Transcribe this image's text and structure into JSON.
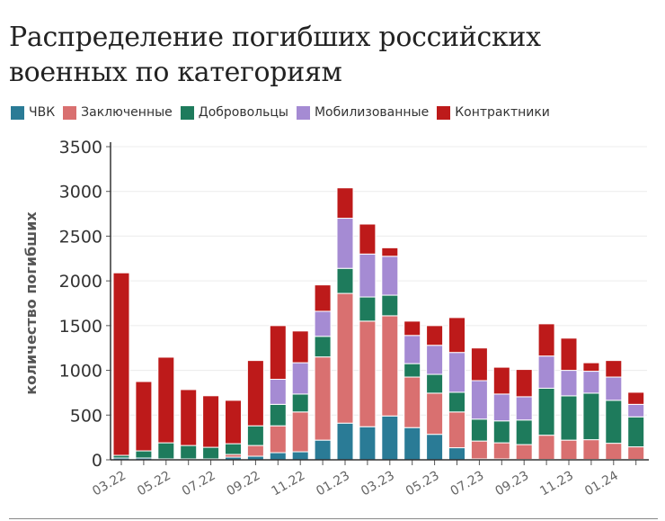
{
  "chart_data": {
    "type": "bar",
    "stacked": true,
    "title": "Распределение погибших российских военных по категориям",
    "xlabel": "",
    "ylabel": "количество погибших",
    "ylim": [
      0,
      3500
    ],
    "y_ticks": [
      0,
      500,
      1000,
      1500,
      2000,
      2500,
      3000,
      3500
    ],
    "grid": true,
    "legend_position": "top-left",
    "categories": [
      "03.22",
      "04.22",
      "05.22",
      "06.22",
      "07.22",
      "08.22",
      "09.22",
      "10.22",
      "11.22",
      "12.22",
      "01.23",
      "02.23",
      "03.23",
      "04.23",
      "05.23",
      "06.23",
      "07.23",
      "08.23",
      "09.23",
      "10.23",
      "11.23",
      "12.23",
      "01.24",
      "02.24"
    ],
    "x_tick_labels": [
      "03.22",
      "05.22",
      "07.22",
      "09.22",
      "11.22",
      "01.23",
      "03.23",
      "05.23",
      "07.23",
      "09.23",
      "11.23",
      "01.24"
    ],
    "series": [
      {
        "name": "ЧВК",
        "color": "#2a7b96",
        "values": [
          20,
          20,
          10,
          10,
          10,
          30,
          40,
          80,
          90,
          220,
          410,
          370,
          490,
          360,
          285,
          135,
          10,
          10,
          5,
          5,
          5,
          5,
          5,
          5
        ]
      },
      {
        "name": "Заключенные",
        "color": "#d97070",
        "values": [
          0,
          0,
          0,
          0,
          0,
          30,
          120,
          300,
          445,
          930,
          1450,
          1180,
          1120,
          565,
          460,
          400,
          200,
          180,
          165,
          270,
          215,
          220,
          180,
          140
        ]
      },
      {
        "name": "Добровольцы",
        "color": "#1e7b5c",
        "values": [
          30,
          80,
          180,
          150,
          130,
          120,
          220,
          240,
          200,
          230,
          280,
          270,
          230,
          150,
          210,
          220,
          245,
          245,
          275,
          525,
          495,
          520,
          480,
          335
        ]
      },
      {
        "name": "Мобилизованные",
        "color": "#a58bd3",
        "values": [
          0,
          0,
          0,
          0,
          0,
          0,
          0,
          280,
          350,
          280,
          560,
          480,
          435,
          315,
          325,
          445,
          430,
          300,
          260,
          360,
          285,
          245,
          260,
          140
        ]
      },
      {
        "name": "Контрактники",
        "color": "#bd1a1a",
        "values": [
          2040,
          775,
          957,
          625,
          576,
          485,
          730,
          600,
          355,
          295,
          340,
          335,
          95,
          160,
          220,
          390,
          365,
          300,
          305,
          360,
          360,
          95,
          185,
          135
        ]
      }
    ]
  }
}
